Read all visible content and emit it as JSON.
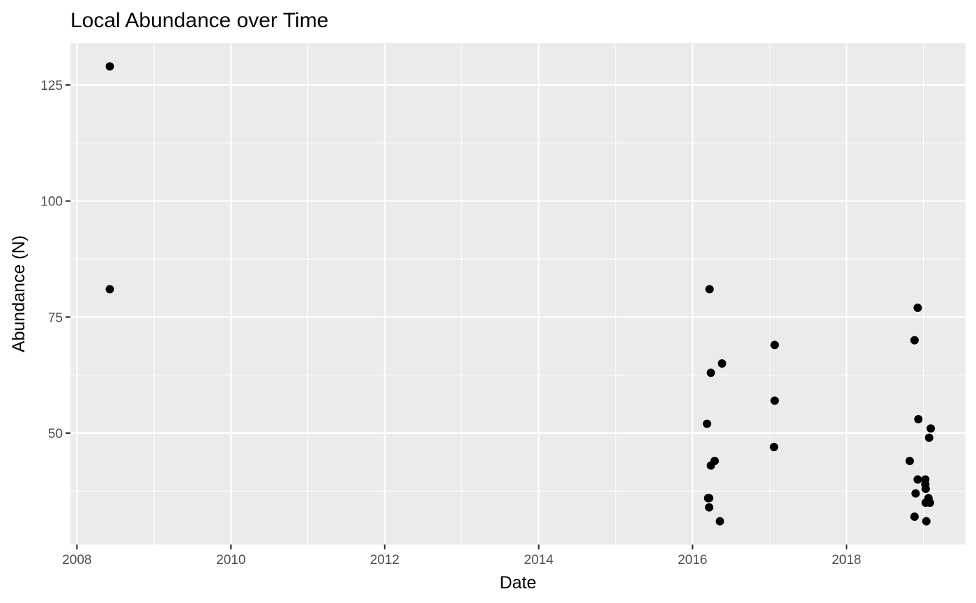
{
  "chart_data": {
    "type": "scatter",
    "title": "Local Abundance over Time",
    "xlabel": "Date",
    "ylabel": "Abundance (N)",
    "x_axis": {
      "scale": "date",
      "range": [
        "2007-12-01",
        "2019-07-20"
      ],
      "major_ticks": [
        "2008-01-01",
        "2010-01-01",
        "2012-01-01",
        "2014-01-01",
        "2016-01-01",
        "2018-01-01"
      ],
      "minor_ticks": [
        "2009-01-01",
        "2011-01-01",
        "2013-01-01",
        "2015-01-01",
        "2017-01-01",
        "2019-01-01"
      ],
      "tick_labels": [
        "2008",
        "2010",
        "2012",
        "2014",
        "2016",
        "2018"
      ]
    },
    "y_axis": {
      "range": [
        26,
        134
      ],
      "major_ticks": [
        50,
        75,
        100,
        125
      ],
      "minor_ticks": [
        37.5,
        62.5,
        87.5,
        112.5
      ],
      "tick_labels": [
        "50",
        "75",
        "100",
        "125"
      ]
    },
    "grid": true,
    "legend": "none",
    "colors": {
      "panel": "#ebebeb",
      "grid": "#ffffff",
      "point": "#000000",
      "tick_label": "#4d4d4d",
      "tick": "#333333"
    },
    "points": [
      {
        "x": "2008-06-05",
        "y": 129
      },
      {
        "x": "2008-06-05",
        "y": 81
      },
      {
        "x": "2016-03-10",
        "y": 52
      },
      {
        "x": "2016-03-15",
        "y": 36
      },
      {
        "x": "2016-03-20",
        "y": 36
      },
      {
        "x": "2016-03-20",
        "y": 34
      },
      {
        "x": "2016-03-22",
        "y": 81
      },
      {
        "x": "2016-03-28",
        "y": 63
      },
      {
        "x": "2016-03-28",
        "y": 43
      },
      {
        "x": "2016-04-15",
        "y": 44
      },
      {
        "x": "2016-05-10",
        "y": 31
      },
      {
        "x": "2016-05-20",
        "y": 65
      },
      {
        "x": "2017-01-25",
        "y": 69
      },
      {
        "x": "2017-01-25",
        "y": 57
      },
      {
        "x": "2017-01-22",
        "y": 47
      },
      {
        "x": "2018-10-28",
        "y": 44
      },
      {
        "x": "2018-11-20",
        "y": 70
      },
      {
        "x": "2018-11-20",
        "y": 32
      },
      {
        "x": "2018-11-25",
        "y": 37
      },
      {
        "x": "2018-12-05",
        "y": 77
      },
      {
        "x": "2018-12-05",
        "y": 40
      },
      {
        "x": "2018-12-08",
        "y": 53
      },
      {
        "x": "2019-01-10",
        "y": 40
      },
      {
        "x": "2019-01-10",
        "y": 39
      },
      {
        "x": "2019-01-12",
        "y": 38
      },
      {
        "x": "2019-01-12",
        "y": 35
      },
      {
        "x": "2019-01-15",
        "y": 31
      },
      {
        "x": "2019-01-25",
        "y": 36
      },
      {
        "x": "2019-01-28",
        "y": 49
      },
      {
        "x": "2019-02-01",
        "y": 35
      },
      {
        "x": "2019-02-05",
        "y": 51
      }
    ]
  }
}
